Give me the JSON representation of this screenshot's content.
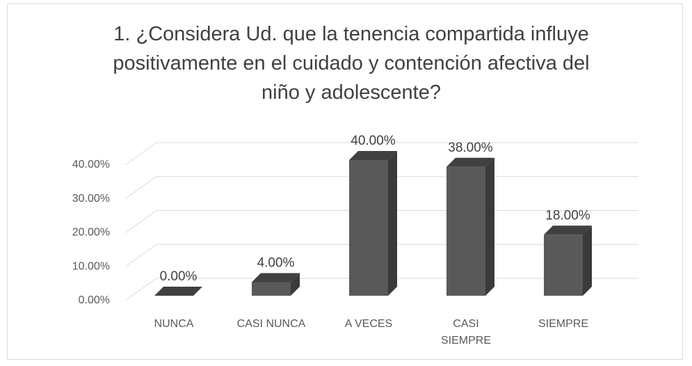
{
  "chart_data": {
    "type": "bar3d",
    "title": "1. ¿Considera Ud. que la tenencia compartida influye positivamente en el cuidado y contención afectiva del niño y adolescente?",
    "categories": [
      "NUNCA",
      "CASI NUNCA",
      "A VECES",
      "CASI SIEMPRE",
      "SIEMPRE"
    ],
    "values": [
      0,
      4,
      40,
      38,
      18
    ],
    "value_labels": [
      "0.00%",
      "4.00%",
      "40.00%",
      "38.00%",
      "18.00%"
    ],
    "color": "#595959",
    "ylim": [
      0,
      40
    ],
    "yticks": [
      {
        "value": 0,
        "label": "0.00%"
      },
      {
        "value": 10,
        "label": "10.00%"
      },
      {
        "value": 20,
        "label": "20.00%"
      },
      {
        "value": 30,
        "label": "30.00%"
      },
      {
        "value": 40,
        "label": "40.00%"
      }
    ],
    "grid": true
  }
}
